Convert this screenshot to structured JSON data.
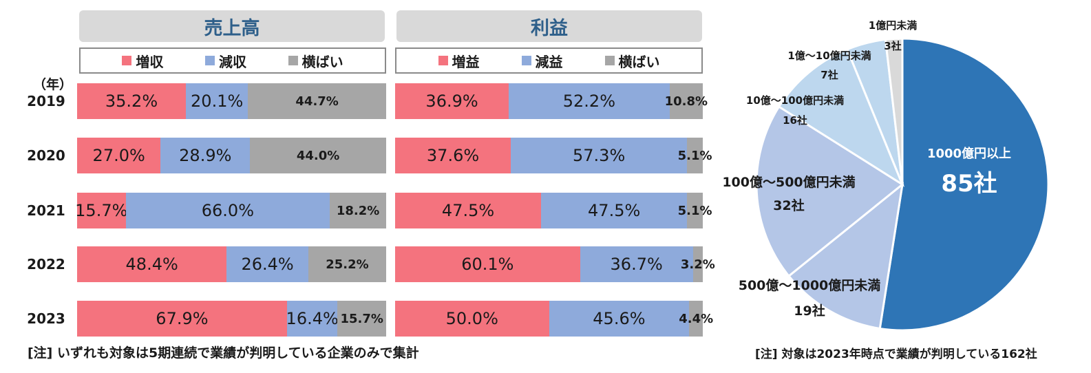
{
  "panels": {
    "sales": {
      "title": "売上高",
      "legend": [
        "増収",
        "減収",
        "横ばい"
      ]
    },
    "profit": {
      "title": "利益",
      "legend": [
        "増益",
        "減益",
        "横ばい"
      ]
    }
  },
  "year_unit": "（年）",
  "years": [
    "2019",
    "2020",
    "2021",
    "2022",
    "2023"
  ],
  "colors": {
    "up": "#f4737e",
    "down": "#8eaadb",
    "flat": "#a6a6a6",
    "pie": [
      "#2e75b6",
      "#b4c6e7",
      "#b4c6e7",
      "#bdd7ee",
      "#bdd7ee",
      "#d9d9d9"
    ]
  },
  "chart_data": [
    {
      "type": "bar",
      "orientation": "horizontal-stacked",
      "title": "売上高",
      "categories": [
        "2019",
        "2020",
        "2021",
        "2022",
        "2023"
      ],
      "series": [
        {
          "name": "増収",
          "values": [
            35.2,
            27.0,
            15.7,
            48.4,
            67.9
          ],
          "labels": [
            "35.2%",
            "27.0%",
            "15.7%",
            "48.4%",
            "67.9%"
          ]
        },
        {
          "name": "減収",
          "values": [
            20.1,
            28.9,
            66.0,
            26.4,
            16.4
          ],
          "labels": [
            "20.1%",
            "28.9%",
            "66.0%",
            "26.4%",
            "16.4%"
          ]
        },
        {
          "name": "横ばい",
          "values": [
            44.7,
            44.0,
            18.2,
            25.2,
            15.7
          ],
          "labels": [
            "44.7%",
            "44.0%",
            "18.2%",
            "25.2%",
            "15.7%"
          ]
        }
      ]
    },
    {
      "type": "bar",
      "orientation": "horizontal-stacked",
      "title": "利益",
      "categories": [
        "2019",
        "2020",
        "2021",
        "2022",
        "2023"
      ],
      "series": [
        {
          "name": "増益",
          "values": [
            36.9,
            37.6,
            47.5,
            60.1,
            50.0
          ],
          "labels": [
            "36.9%",
            "37.6%",
            "47.5%",
            "60.1%",
            "50.0%"
          ]
        },
        {
          "name": "減益",
          "values": [
            52.2,
            57.3,
            47.5,
            36.7,
            45.6
          ],
          "labels": [
            "52.2%",
            "57.3%",
            "47.5%",
            "36.7%",
            "45.6%"
          ]
        },
        {
          "name": "横ばい",
          "values": [
            10.8,
            5.1,
            5.1,
            3.2,
            4.4
          ],
          "labels": [
            "10.8%",
            "5.1%",
            "5.1%",
            "3.2%",
            "4.4%"
          ]
        }
      ]
    },
    {
      "type": "pie",
      "slices": [
        {
          "label": "1000億円以上",
          "value": 85,
          "value_label": "85社"
        },
        {
          "label": "500億～1000億円未満",
          "value": 19,
          "value_label": "19社"
        },
        {
          "label": "100億～500億円未満",
          "value": 32,
          "value_label": "32社"
        },
        {
          "label": "10億～100億円未満",
          "value": 16,
          "value_label": "16社"
        },
        {
          "label": "1億～10億円未満",
          "value": 7,
          "value_label": "7社"
        },
        {
          "label": "1億円未満",
          "value": 3,
          "value_label": "3社"
        }
      ]
    }
  ],
  "notes": {
    "left": "[注] いずれも対象は5期連続で業績が判明している企業のみで集計",
    "right": "[注] 対象は2023年時点で業績が判明している162社"
  }
}
